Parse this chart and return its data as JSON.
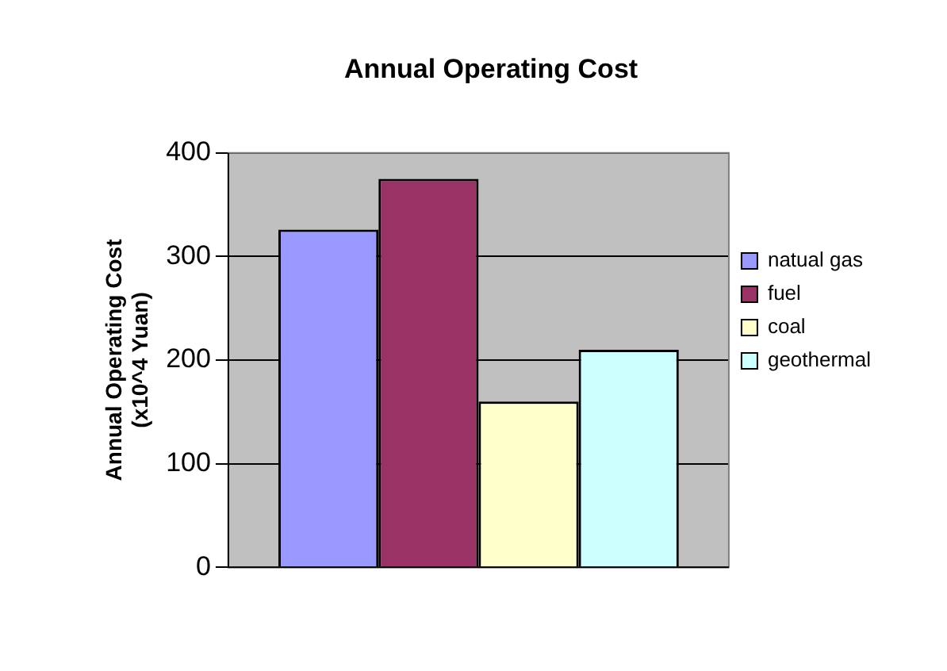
{
  "chart_data": {
    "type": "bar",
    "title": "Annual Operating Cost",
    "ylabel": "Annual Operating Cost\n(x10^4 Yuan)",
    "categories": [
      null
    ],
    "series": [
      {
        "name": "natual gas",
        "color": "#9999ff",
        "values": [
          326
        ]
      },
      {
        "name": "fuel",
        "color": "#993366",
        "values": [
          375
        ]
      },
      {
        "name": "coal",
        "color": "#ffffcc",
        "values": [
          160
        ]
      },
      {
        "name": "geothermal",
        "color": "#ccffff",
        "values": [
          210
        ]
      }
    ],
    "ylim": [
      0,
      400
    ],
    "yticks": [
      0,
      100,
      200,
      300,
      400
    ],
    "grid": "y",
    "legend": "right"
  }
}
